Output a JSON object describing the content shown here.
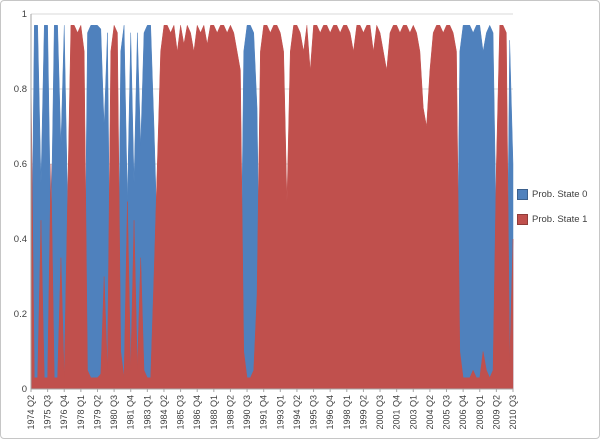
{
  "frame": {
    "background": "#ffffff",
    "border_color": "#c6c6c6"
  },
  "chart_data": {
    "type": "area",
    "mode": "overlapping",
    "title": "",
    "xlabel": "",
    "ylabel": "",
    "ylim": [
      0,
      1
    ],
    "grid": "horizontal",
    "grid_color": "#d9d9d9",
    "axis_color": "#a6a6a6",
    "text_color": "#404040",
    "legend_position": "right",
    "n_points": 146,
    "x_label_every": 5,
    "x_tick_labels": [
      "1974 Q2",
      "1975 Q3",
      "1976 Q4",
      "1978 Q1",
      "1979 Q2",
      "1980 Q3",
      "1981 Q4",
      "1983 Q1",
      "1984 Q2",
      "1985 Q3",
      "1986 Q4",
      "1988 Q1",
      "1989 Q2",
      "1990 Q3",
      "1991 Q4",
      "1993 Q1",
      "1994 Q2",
      "1995 Q3",
      "1996 Q4",
      "1998 Q1",
      "1999 Q2",
      "2000 Q3",
      "2001 Q4",
      "2003 Q1",
      "2004 Q2",
      "2005 Q3",
      "2006 Q4",
      "2008 Q1",
      "2009 Q2",
      "2010 Q3"
    ],
    "y_ticks": [
      0,
      0.2,
      0.4,
      0.6,
      0.8,
      1
    ],
    "y_tick_labels": [
      "0",
      "0.2",
      "0.4",
      "0.6",
      "0.8",
      "1"
    ],
    "series": [
      {
        "name": "Prob. State 0",
        "color": "#4F81BD",
        "values": [
          0.15,
          0.97,
          0.97,
          0.55,
          0.97,
          0.97,
          0.4,
          0.97,
          0.97,
          0.65,
          0.97,
          0.5,
          0.03,
          0.03,
          0.05,
          0.03,
          0.1,
          0.95,
          0.97,
          0.97,
          0.97,
          0.96,
          0.7,
          0.95,
          0.1,
          0.03,
          0.05,
          0.9,
          0.97,
          0.5,
          0.95,
          0.55,
          0.95,
          0.65,
          0.95,
          0.97,
          0.97,
          0.7,
          0.4,
          0.1,
          0.03,
          0.03,
          0.05,
          0.03,
          0.1,
          0.03,
          0.08,
          0.03,
          0.05,
          0.1,
          0.03,
          0.05,
          0.03,
          0.08,
          0.03,
          0.03,
          0.05,
          0.03,
          0.03,
          0.05,
          0.03,
          0.05,
          0.1,
          0.15,
          0.9,
          0.97,
          0.97,
          0.95,
          0.75,
          0.1,
          0.03,
          0.03,
          0.05,
          0.03,
          0.03,
          0.05,
          0.1,
          0.5,
          0.1,
          0.03,
          0.03,
          0.05,
          0.1,
          0.03,
          0.15,
          0.03,
          0.03,
          0.05,
          0.03,
          0.03,
          0.05,
          0.03,
          0.03,
          0.05,
          0.03,
          0.03,
          0.05,
          0.1,
          0.03,
          0.03,
          0.05,
          0.03,
          0.03,
          0.1,
          0.03,
          0.05,
          0.1,
          0.15,
          0.05,
          0.03,
          0.03,
          0.05,
          0.03,
          0.03,
          0.05,
          0.03,
          0.05,
          0.1,
          0.25,
          0.3,
          0.15,
          0.05,
          0.03,
          0.03,
          0.05,
          0.03,
          0.03,
          0.05,
          0.1,
          0.9,
          0.97,
          0.97,
          0.97,
          0.95,
          0.97,
          0.97,
          0.9,
          0.95,
          0.97,
          0.95,
          0.4,
          0.03,
          0.03,
          0.05,
          0.93,
          0.6
        ]
      },
      {
        "name": "Prob. State 1",
        "color": "#C0504D",
        "values": [
          0.85,
          0.03,
          0.03,
          0.45,
          0.03,
          0.03,
          0.6,
          0.03,
          0.03,
          0.35,
          0.03,
          0.5,
          0.97,
          0.97,
          0.95,
          0.97,
          0.9,
          0.05,
          0.03,
          0.03,
          0.03,
          0.04,
          0.3,
          0.05,
          0.9,
          0.97,
          0.95,
          0.1,
          0.03,
          0.5,
          0.05,
          0.45,
          0.05,
          0.35,
          0.05,
          0.03,
          0.03,
          0.3,
          0.6,
          0.9,
          0.97,
          0.97,
          0.95,
          0.97,
          0.9,
          0.97,
          0.92,
          0.97,
          0.95,
          0.9,
          0.97,
          0.95,
          0.97,
          0.92,
          0.97,
          0.97,
          0.95,
          0.97,
          0.97,
          0.95,
          0.97,
          0.95,
          0.9,
          0.85,
          0.1,
          0.03,
          0.03,
          0.05,
          0.25,
          0.9,
          0.97,
          0.97,
          0.95,
          0.97,
          0.97,
          0.95,
          0.9,
          0.5,
          0.9,
          0.97,
          0.97,
          0.95,
          0.9,
          0.97,
          0.85,
          0.97,
          0.97,
          0.95,
          0.97,
          0.97,
          0.95,
          0.97,
          0.97,
          0.95,
          0.97,
          0.97,
          0.95,
          0.9,
          0.97,
          0.97,
          0.95,
          0.97,
          0.97,
          0.9,
          0.97,
          0.95,
          0.9,
          0.85,
          0.95,
          0.97,
          0.97,
          0.95,
          0.97,
          0.97,
          0.95,
          0.97,
          0.95,
          0.9,
          0.75,
          0.7,
          0.85,
          0.95,
          0.97,
          0.97,
          0.95,
          0.97,
          0.97,
          0.95,
          0.9,
          0.1,
          0.03,
          0.03,
          0.03,
          0.05,
          0.03,
          0.03,
          0.1,
          0.05,
          0.03,
          0.05,
          0.6,
          0.97,
          0.97,
          0.95,
          0.07,
          0.4
        ]
      }
    ]
  }
}
